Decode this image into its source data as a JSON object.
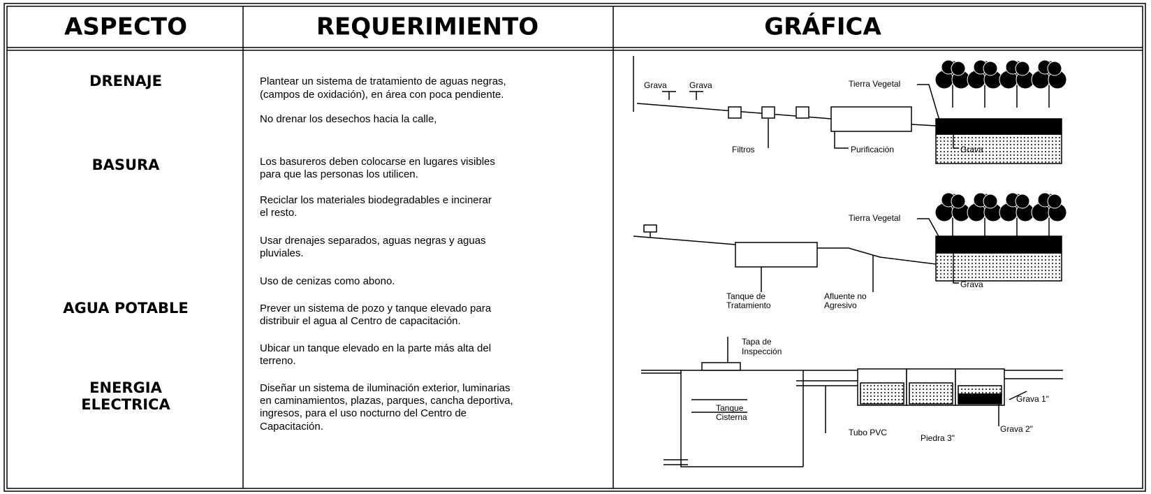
{
  "table": {
    "headers": [
      "ASPECTO",
      "REQUERIMIENTO",
      "GRÁFICA"
    ],
    "rows": [
      {
        "aspect": [
          "DRENAJE"
        ],
        "requirements": [
          [
            "Plantear un sistema de tratamiento de aguas negras,",
            "(campos de oxidación), en área con poca pendiente."
          ],
          [
            "No drenar los desechos hacia la calle,"
          ]
        ]
      },
      {
        "aspect": [
          "BASURA"
        ],
        "requirements": [
          [
            "Los basureros deben colocarse en lugares visibles",
            "para que las personas los utilicen."
          ],
          [
            "Reciclar los materiales biodegradables e incinerar",
            "el resto."
          ],
          [
            "Usar drenajes separados, aguas negras y aguas",
            "pluviales."
          ],
          [
            "Uso de cenizas como abono."
          ]
        ]
      },
      {
        "aspect": [
          "AGUA POTABLE"
        ],
        "requirements": [
          [
            "Prever un sistema de pozo y tanque elevado para",
            "distribuir el agua al Centro de capacitación."
          ],
          [
            "Ubicar un tanque elevado en la parte más alta del",
            "terreno."
          ]
        ]
      },
      {
        "aspect": [
          "ENERGIA",
          "ELECTRICA"
        ],
        "requirements": [
          [
            "Diseñar un sistema de iluminación exterior, luminarias",
            "en caminamientos, plazas, parques, cancha deportiva,",
            "ingresos, para el uso nocturno del Centro de",
            "Capacitación."
          ]
        ]
      }
    ]
  },
  "graphics": {
    "drenaje": {
      "grava_1": "Grava",
      "grava_2": "Grava",
      "tierra": "Tierra Vegetal",
      "filtros": "Filtros",
      "purificacion": "Purificación",
      "grava_3": "Grava"
    },
    "basura": {
      "tierra": "Tierra Vegetal",
      "tanque": [
        "Tanque de",
        "Tratamiento"
      ],
      "afluente": [
        "Afluente no",
        "Agresivo"
      ],
      "grava": "Grava"
    },
    "agua": {
      "tapa": [
        "Tapa de",
        "Inspección"
      ],
      "cisterna": [
        "Tanque",
        "Cisterna"
      ],
      "tubo": "Tubo PVC",
      "piedra": "Piedra 3\"",
      "grava_1": "Grava 1\"",
      "grava_2": "Grava 2\""
    }
  }
}
